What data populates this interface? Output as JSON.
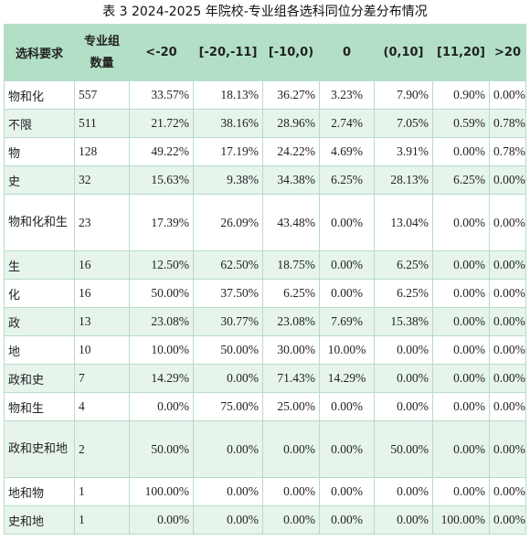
{
  "caption": "表 3 2024-2025 年院校-专业组各选科同位分差分布情况",
  "table": {
    "headers": [
      "选科要求",
      "专业组数量",
      "<-20",
      "[-20,-11]",
      "[-10,0)",
      "0",
      "(0,10]",
      "[11,20]",
      ">20"
    ],
    "rows": [
      {
        "subject": "物和化",
        "count": "557",
        "values": [
          "33.57%",
          "18.13%",
          "36.27%",
          "3.23%",
          "7.90%",
          "0.90%",
          "0.00%"
        ]
      },
      {
        "subject": "不限",
        "count": "511",
        "values": [
          "21.72%",
          "38.16%",
          "28.96%",
          "2.74%",
          "7.05%",
          "0.59%",
          "0.78%"
        ]
      },
      {
        "subject": "物",
        "count": "128",
        "values": [
          "49.22%",
          "17.19%",
          "24.22%",
          "4.69%",
          "3.91%",
          "0.00%",
          "0.78%"
        ]
      },
      {
        "subject": "史",
        "count": "32",
        "values": [
          "15.63%",
          "9.38%",
          "34.38%",
          "6.25%",
          "28.13%",
          "6.25%",
          "0.00%"
        ]
      },
      {
        "subject": "物和化和生",
        "count": "23",
        "values": [
          "17.39%",
          "26.09%",
          "43.48%",
          "0.00%",
          "13.04%",
          "0.00%",
          "0.00%"
        ]
      },
      {
        "subject": "生",
        "count": "16",
        "values": [
          "12.50%",
          "62.50%",
          "18.75%",
          "0.00%",
          "6.25%",
          "0.00%",
          "0.00%"
        ]
      },
      {
        "subject": "化",
        "count": "16",
        "values": [
          "50.00%",
          "37.50%",
          "6.25%",
          "0.00%",
          "6.25%",
          "0.00%",
          "0.00%"
        ]
      },
      {
        "subject": "政",
        "count": "13",
        "values": [
          "23.08%",
          "30.77%",
          "23.08%",
          "7.69%",
          "15.38%",
          "0.00%",
          "0.00%"
        ]
      },
      {
        "subject": "地",
        "count": "10",
        "values": [
          "10.00%",
          "50.00%",
          "30.00%",
          "10.00%",
          "0.00%",
          "0.00%",
          "0.00%"
        ]
      },
      {
        "subject": "政和史",
        "count": "7",
        "values": [
          "14.29%",
          "0.00%",
          "71.43%",
          "14.29%",
          "0.00%",
          "0.00%",
          "0.00%"
        ]
      },
      {
        "subject": "物和生",
        "count": "4",
        "values": [
          "0.00%",
          "75.00%",
          "25.00%",
          "0.00%",
          "0.00%",
          "0.00%",
          "0.00%"
        ]
      },
      {
        "subject": "政和史和地",
        "count": "2",
        "values": [
          "50.00%",
          "0.00%",
          "0.00%",
          "0.00%",
          "50.00%",
          "0.00%",
          "0.00%"
        ]
      },
      {
        "subject": "地和物",
        "count": "1",
        "values": [
          "100.00%",
          "0.00%",
          "0.00%",
          "0.00%",
          "0.00%",
          "0.00%",
          "0.00%"
        ]
      },
      {
        "subject": "史和地",
        "count": "1",
        "values": [
          "0.00%",
          "0.00%",
          "0.00%",
          "0.00%",
          "0.00%",
          "100.00%",
          "0.00%"
        ]
      }
    ]
  }
}
